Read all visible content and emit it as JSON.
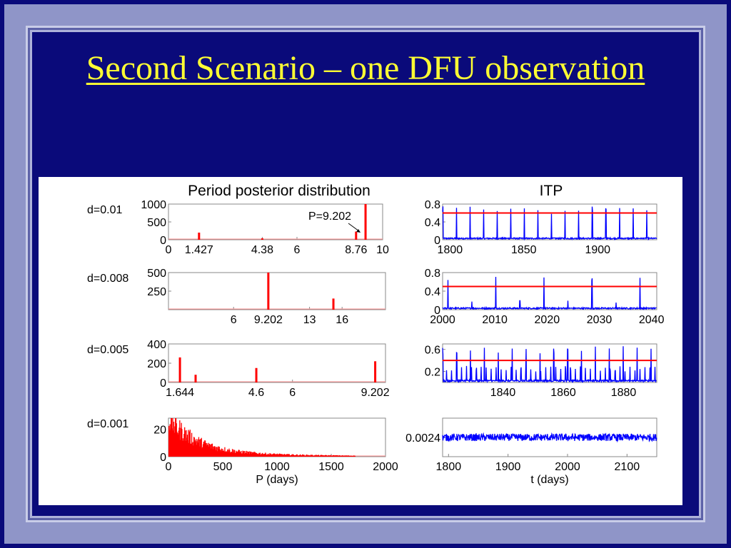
{
  "slide": {
    "title": "Second Scenario – one DFU observation",
    "background_color": "#0a0a7a",
    "title_color": "#ffff33"
  },
  "figure": {
    "left_title": "Period posterior distribution",
    "right_title": "ITP"
  },
  "chart_data": [
    {
      "type": "bar",
      "panel": "posterior",
      "row_label": "d=0.01",
      "x_ticks": [
        "0",
        "1.427",
        "4.38",
        "6",
        "8.76",
        "10"
      ],
      "y_ticks": [
        "0",
        "500",
        "1000"
      ],
      "xlim": [
        0,
        10
      ],
      "ylim": [
        0,
        1000
      ],
      "x": [
        1.427,
        4.38,
        8.76,
        9.202
      ],
      "values": [
        200,
        40,
        230,
        1000
      ],
      "annotation": "P=9.202",
      "color": "#ff0000"
    },
    {
      "type": "line",
      "panel": "ITP",
      "row_label": "d=0.01",
      "x_ticks": [
        "1800",
        "1850",
        "1900"
      ],
      "y_ticks": [
        "0",
        "0.4",
        "0.8"
      ],
      "xlim": [
        1795,
        1940
      ],
      "ylim": [
        0,
        0.8
      ],
      "spike_period": 9.202,
      "spike_height": 0.68,
      "threshold": 0.6,
      "series_color": "#0000ff",
      "threshold_color": "#ff0000"
    },
    {
      "type": "bar",
      "panel": "posterior",
      "row_label": "d=0.008",
      "x_ticks": [
        "6",
        "9.202",
        "13",
        "16"
      ],
      "y_ticks": [
        "250",
        "500"
      ],
      "xlim": [
        0,
        20
      ],
      "ylim": [
        0,
        500
      ],
      "x": [
        9.202,
        15.2
      ],
      "values": [
        500,
        150
      ],
      "color": "#ff0000"
    },
    {
      "type": "line",
      "panel": "ITP",
      "row_label": "d=0.008",
      "x_ticks": [
        "2000",
        "2010",
        "2020",
        "2030",
        "2040"
      ],
      "y_ticks": [
        "0",
        "0.4",
        "0.8"
      ],
      "xlim": [
        2000,
        2041
      ],
      "ylim": [
        0,
        0.8
      ],
      "spike_x": [
        2001.0,
        2010.2,
        2019.4,
        2028.6,
        2037.8
      ],
      "spike_height": 0.7,
      "small_spike_x": [
        2005.6,
        2014.8,
        2024.0,
        2033.2
      ],
      "small_spike_height": 0.18,
      "threshold": 0.5,
      "series_color": "#0000ff",
      "threshold_color": "#ff0000"
    },
    {
      "type": "bar",
      "panel": "posterior",
      "row_label": "d=0.005",
      "x_ticks": [
        "1.644",
        "4.6",
        "6",
        "9.202"
      ],
      "y_ticks": [
        "0",
        "200",
        "400"
      ],
      "xlim": [
        1.2,
        9.6
      ],
      "ylim": [
        0,
        400
      ],
      "x": [
        1.644,
        2.25,
        4.6,
        9.202
      ],
      "values": [
        260,
        80,
        150,
        220
      ],
      "color": "#ff0000"
    },
    {
      "type": "line",
      "panel": "ITP",
      "row_label": "d=0.005",
      "x_ticks": [
        "1840",
        "1860",
        "1880"
      ],
      "y_ticks": [
        "0.2",
        "0.6"
      ],
      "xlim": [
        1820,
        1891
      ],
      "ylim": [
        0,
        0.7
      ],
      "spike_period": 4.6,
      "spike_height": 0.6,
      "small_period": 1.644,
      "small_height": 0.25,
      "threshold": 0.4,
      "series_color": "#0000ff",
      "threshold_color": "#ff0000"
    },
    {
      "type": "bar",
      "panel": "posterior",
      "row_label": "d=0.001",
      "x_ticks": [
        "0",
        "500",
        "1000",
        "1500",
        "2000"
      ],
      "y_ticks": [
        "0",
        "20"
      ],
      "xlim": [
        0,
        2000
      ],
      "ylim": [
        0,
        28
      ],
      "xlabel": "P (days)",
      "decay_start": 28,
      "decay_scale": 260,
      "noise_floor": 3,
      "cutoff": 1720,
      "color": "#ff0000"
    },
    {
      "type": "line",
      "panel": "ITP",
      "row_label": "d=0.001",
      "x_ticks": [
        "1800",
        "1900",
        "2000",
        "2100"
      ],
      "y_ticks": [
        "0.0024"
      ],
      "xlim": [
        1790,
        2150
      ],
      "ylim": [
        0.0016,
        0.0032
      ],
      "xlabel": "t (days)",
      "level": 0.0024,
      "noise": 0.00015,
      "series_color": "#0000ff"
    }
  ]
}
